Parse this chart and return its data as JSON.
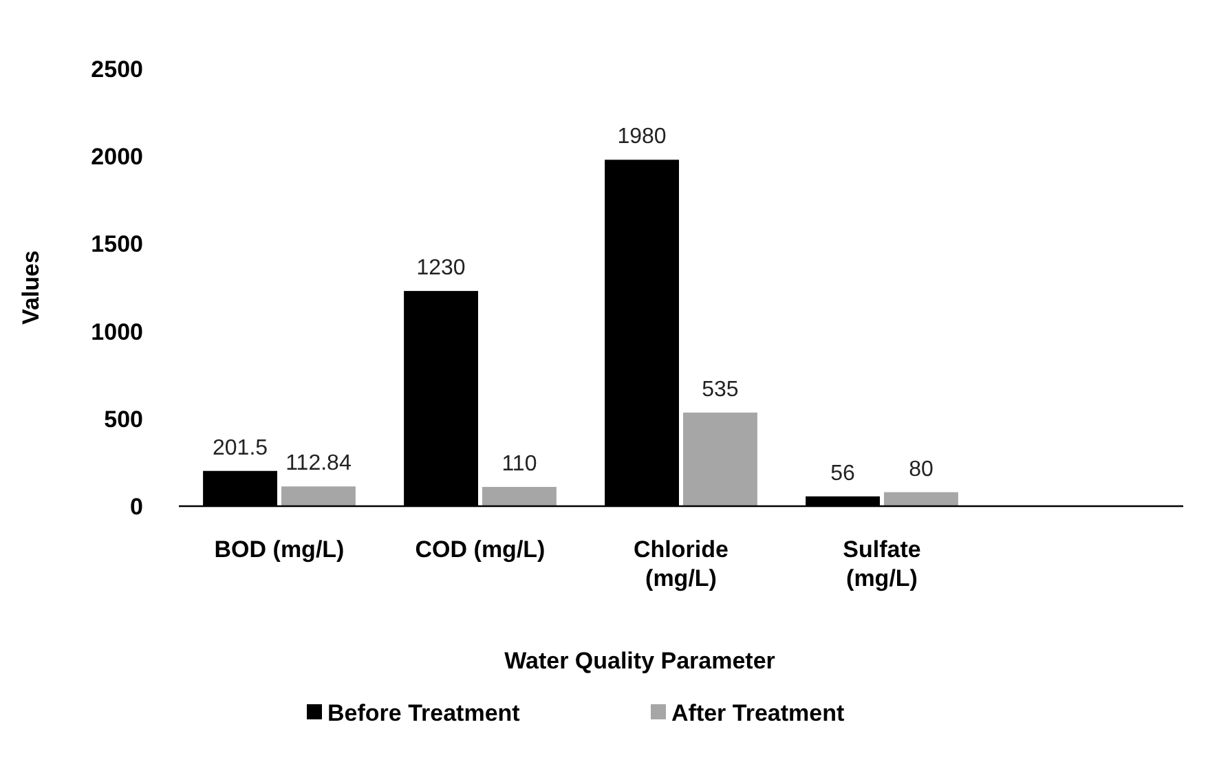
{
  "chart_data": {
    "type": "bar",
    "xlabel": "Water Quality Parameter",
    "ylabel": "Values",
    "categories": [
      "BOD (mg/L)",
      "COD (mg/L)",
      "Chloride (mg/L)",
      "Sulfate (mg/L)",
      null
    ],
    "series": [
      {
        "name": "Before Treatment",
        "color": "#000000",
        "values": [
          201.5,
          1230,
          1980,
          56,
          null
        ]
      },
      {
        "name": "After Treatment",
        "color": "#a6a6a6",
        "values": [
          112.84,
          110,
          535,
          80,
          null
        ]
      }
    ],
    "ylim": [
      0,
      2500
    ],
    "yticks": [
      0,
      500,
      1000,
      1500,
      2000,
      2500
    ],
    "grid": false,
    "legend": "bottom",
    "data_labels": true
  }
}
